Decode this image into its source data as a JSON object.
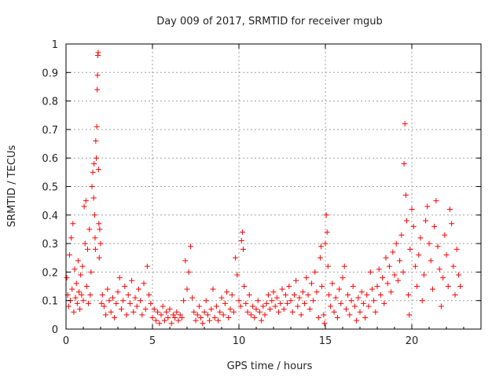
{
  "chart_data": {
    "type": "scatter",
    "title": "Day 009 of 2017, SRMTID for receiver mgub",
    "xlabel": "GPS time / hours",
    "ylabel": "SRMTID / TECUs",
    "xlim": [
      0,
      24
    ],
    "ylim": [
      0,
      1
    ],
    "xticks": [
      0,
      5,
      10,
      15,
      20
    ],
    "yticks": [
      0,
      0.1,
      0.2,
      0.3,
      0.4,
      0.5,
      0.6,
      0.7,
      0.8,
      0.9,
      1
    ],
    "xtick_labels": [
      "0",
      "5",
      "10",
      "15",
      "20"
    ],
    "ytick_labels": [
      "0",
      "0.1",
      "0.2",
      "0.3",
      "0.4",
      "0.5",
      "0.6",
      "0.7",
      "0.8",
      "0.9",
      "1"
    ],
    "grid": true,
    "marker": "+",
    "color": "#ff0000",
    "series": [
      {
        "name": "SRMTID",
        "points": [
          [
            0.05,
            0.18
          ],
          [
            0.1,
            0.12
          ],
          [
            0.15,
            0.08
          ],
          [
            0.2,
            0.26
          ],
          [
            0.25,
            0.1
          ],
          [
            0.3,
            0.32
          ],
          [
            0.35,
            0.14
          ],
          [
            0.4,
            0.37
          ],
          [
            0.45,
            0.06
          ],
          [
            0.5,
            0.21
          ],
          [
            0.55,
            0.11
          ],
          [
            0.6,
            0.16
          ],
          [
            0.65,
            0.09
          ],
          [
            0.7,
            0.24
          ],
          [
            0.75,
            0.13
          ],
          [
            0.8,
            0.07
          ],
          [
            0.85,
            0.19
          ],
          [
            0.9,
            0.12
          ],
          [
            0.95,
            0.22
          ],
          [
            1.0,
            0.1
          ],
          [
            1.05,
            0.43
          ],
          [
            1.1,
            0.3
          ],
          [
            1.15,
            0.45
          ],
          [
            1.2,
            0.15
          ],
          [
            1.25,
            0.28
          ],
          [
            1.3,
            0.09
          ],
          [
            1.35,
            0.35
          ],
          [
            1.4,
            0.12
          ],
          [
            1.45,
            0.2
          ],
          [
            1.5,
            0.5
          ],
          [
            1.55,
            0.55
          ],
          [
            1.6,
            0.46
          ],
          [
            1.62,
            0.58
          ],
          [
            1.65,
            0.4
          ],
          [
            1.68,
            0.32
          ],
          [
            1.7,
            0.28
          ],
          [
            1.72,
            0.66
          ],
          [
            1.75,
            0.6
          ],
          [
            1.78,
            0.71
          ],
          [
            1.8,
            0.84
          ],
          [
            1.82,
            0.89
          ],
          [
            1.84,
            0.96
          ],
          [
            1.86,
            0.97
          ],
          [
            1.88,
            0.56
          ],
          [
            1.9,
            0.37
          ],
          [
            1.92,
            0.25
          ],
          [
            1.95,
            0.35
          ],
          [
            2.0,
            0.3
          ],
          [
            2.05,
            0.09
          ],
          [
            2.1,
            0.12
          ],
          [
            2.2,
            0.08
          ],
          [
            2.3,
            0.05
          ],
          [
            2.4,
            0.14
          ],
          [
            2.5,
            0.1
          ],
          [
            2.6,
            0.06
          ],
          [
            2.7,
            0.11
          ],
          [
            2.8,
            0.04
          ],
          [
            2.9,
            0.09
          ],
          [
            3.0,
            0.13
          ],
          [
            3.1,
            0.18
          ],
          [
            3.2,
            0.07
          ],
          [
            3.3,
            0.1
          ],
          [
            3.4,
            0.15
          ],
          [
            3.5,
            0.05
          ],
          [
            3.6,
            0.12
          ],
          [
            3.7,
            0.09
          ],
          [
            3.8,
            0.17
          ],
          [
            3.9,
            0.06
          ],
          [
            4.0,
            0.11
          ],
          [
            4.1,
            0.08
          ],
          [
            4.2,
            0.14
          ],
          [
            4.3,
            0.1
          ],
          [
            4.4,
            0.05
          ],
          [
            4.5,
            0.16
          ],
          [
            4.6,
            0.07
          ],
          [
            4.7,
            0.22
          ],
          [
            4.8,
            0.12
          ],
          [
            4.9,
            0.09
          ],
          [
            5.0,
            0.04
          ],
          [
            5.1,
            0.07
          ],
          [
            5.2,
            0.03
          ],
          [
            5.3,
            0.06
          ],
          [
            5.4,
            0.02
          ],
          [
            5.5,
            0.05
          ],
          [
            5.6,
            0.08
          ],
          [
            5.7,
            0.03
          ],
          [
            5.8,
            0.06
          ],
          [
            5.9,
            0.04
          ],
          [
            6.0,
            0.07
          ],
          [
            6.1,
            0.02
          ],
          [
            6.2,
            0.05
          ],
          [
            6.3,
            0.04
          ],
          [
            6.4,
            0.06
          ],
          [
            6.5,
            0.03
          ],
          [
            6.6,
            0.05
          ],
          [
            6.7,
            0.04
          ],
          [
            6.8,
            0.1
          ],
          [
            6.9,
            0.24
          ],
          [
            7.0,
            0.14
          ],
          [
            7.1,
            0.2
          ],
          [
            7.2,
            0.29
          ],
          [
            7.3,
            0.11
          ],
          [
            7.4,
            0.06
          ],
          [
            7.5,
            0.03
          ],
          [
            7.6,
            0.05
          ],
          [
            7.7,
            0.08
          ],
          [
            7.8,
            0.04
          ],
          [
            7.9,
            0.02
          ],
          [
            8.0,
            0.06
          ],
          [
            8.1,
            0.1
          ],
          [
            8.2,
            0.05
          ],
          [
            8.3,
            0.03
          ],
          [
            8.4,
            0.07
          ],
          [
            8.5,
            0.14
          ],
          [
            8.6,
            0.04
          ],
          [
            8.7,
            0.08
          ],
          [
            8.8,
            0.03
          ],
          [
            8.9,
            0.06
          ],
          [
            9.0,
            0.11
          ],
          [
            9.1,
            0.05
          ],
          [
            9.2,
            0.09
          ],
          [
            9.3,
            0.13
          ],
          [
            9.4,
            0.04
          ],
          [
            9.5,
            0.07
          ],
          [
            9.6,
            0.12
          ],
          [
            9.7,
            0.06
          ],
          [
            9.8,
            0.25
          ],
          [
            9.9,
            0.19
          ],
          [
            10.0,
            0.1
          ],
          [
            10.1,
            0.08
          ],
          [
            10.15,
            0.31
          ],
          [
            10.2,
            0.34
          ],
          [
            10.25,
            0.28
          ],
          [
            10.3,
            0.15
          ],
          [
            10.4,
            0.09
          ],
          [
            10.5,
            0.06
          ],
          [
            10.6,
            0.12
          ],
          [
            10.7,
            0.05
          ],
          [
            10.8,
            0.08
          ],
          [
            10.9,
            0.04
          ],
          [
            11.0,
            0.07
          ],
          [
            11.1,
            0.1
          ],
          [
            11.2,
            0.06
          ],
          [
            11.3,
            0.03
          ],
          [
            11.4,
            0.08
          ],
          [
            11.5,
            0.05
          ],
          [
            11.6,
            0.09
          ],
          [
            11.7,
            0.12
          ],
          [
            11.8,
            0.07
          ],
          [
            11.9,
            0.1
          ],
          [
            12.0,
            0.13
          ],
          [
            12.1,
            0.08
          ],
          [
            12.2,
            0.11
          ],
          [
            12.3,
            0.06
          ],
          [
            12.4,
            0.09
          ],
          [
            12.5,
            0.14
          ],
          [
            12.6,
            0.07
          ],
          [
            12.7,
            0.12
          ],
          [
            12.8,
            0.09
          ],
          [
            12.9,
            0.15
          ],
          [
            13.0,
            0.1
          ],
          [
            13.1,
            0.06
          ],
          [
            13.2,
            0.12
          ],
          [
            13.3,
            0.17
          ],
          [
            13.4,
            0.08
          ],
          [
            13.5,
            0.11
          ],
          [
            13.6,
            0.05
          ],
          [
            13.7,
            0.13
          ],
          [
            13.8,
            0.09
          ],
          [
            13.9,
            0.18
          ],
          [
            14.0,
            0.12
          ],
          [
            14.1,
            0.07
          ],
          [
            14.2,
            0.16
          ],
          [
            14.3,
            0.1
          ],
          [
            14.4,
            0.2
          ],
          [
            14.5,
            0.13
          ],
          [
            14.6,
            0.04
          ],
          [
            14.7,
            0.25
          ],
          [
            14.75,
            0.29
          ],
          [
            14.8,
            0.15
          ],
          [
            14.9,
            0.05
          ],
          [
            14.95,
            0.02
          ],
          [
            15.0,
            0.3
          ],
          [
            15.05,
            0.4
          ],
          [
            15.1,
            0.34
          ],
          [
            15.15,
            0.22
          ],
          [
            15.2,
            0.12
          ],
          [
            15.3,
            0.08
          ],
          [
            15.4,
            0.16
          ],
          [
            15.5,
            0.06
          ],
          [
            15.6,
            0.11
          ],
          [
            15.7,
            0.04
          ],
          [
            15.8,
            0.14
          ],
          [
            15.9,
            0.09
          ],
          [
            16.0,
            0.18
          ],
          [
            16.1,
            0.22
          ],
          [
            16.2,
            0.07
          ],
          [
            16.3,
            0.12
          ],
          [
            16.4,
            0.05
          ],
          [
            16.5,
            0.1
          ],
          [
            16.6,
            0.15
          ],
          [
            16.7,
            0.08
          ],
          [
            16.8,
            0.03
          ],
          [
            16.9,
            0.11
          ],
          [
            17.0,
            0.06
          ],
          [
            17.1,
            0.13
          ],
          [
            17.2,
            0.09
          ],
          [
            17.3,
            0.04
          ],
          [
            17.4,
            0.12
          ],
          [
            17.5,
            0.08
          ],
          [
            17.6,
            0.2
          ],
          [
            17.7,
            0.14
          ],
          [
            17.8,
            0.1
          ],
          [
            17.9,
            0.06
          ],
          [
            18.0,
            0.15
          ],
          [
            18.1,
            0.21
          ],
          [
            18.2,
            0.12
          ],
          [
            18.3,
            0.18
          ],
          [
            18.4,
            0.09
          ],
          [
            18.5,
            0.25
          ],
          [
            18.6,
            0.16
          ],
          [
            18.7,
            0.22
          ],
          [
            18.8,
            0.13
          ],
          [
            18.9,
            0.27
          ],
          [
            19.0,
            0.19
          ],
          [
            19.1,
            0.3
          ],
          [
            19.2,
            0.17
          ],
          [
            19.3,
            0.24
          ],
          [
            19.4,
            0.33
          ],
          [
            19.5,
            0.2
          ],
          [
            19.55,
            0.58
          ],
          [
            19.6,
            0.72
          ],
          [
            19.65,
            0.47
          ],
          [
            19.7,
            0.38
          ],
          [
            19.8,
            0.12
          ],
          [
            19.85,
            0.05
          ],
          [
            19.9,
            0.28
          ],
          [
            20.0,
            0.42
          ],
          [
            20.1,
            0.36
          ],
          [
            20.2,
            0.22
          ],
          [
            20.3,
            0.15
          ],
          [
            20.4,
            0.26
          ],
          [
            20.5,
            0.32
          ],
          [
            20.6,
            0.1
          ],
          [
            20.7,
            0.19
          ],
          [
            20.8,
            0.38
          ],
          [
            20.9,
            0.43
          ],
          [
            21.0,
            0.3
          ],
          [
            21.1,
            0.24
          ],
          [
            21.2,
            0.14
          ],
          [
            21.3,
            0.36
          ],
          [
            21.4,
            0.45
          ],
          [
            21.5,
            0.29
          ],
          [
            21.6,
            0.21
          ],
          [
            21.7,
            0.08
          ],
          [
            21.8,
            0.18
          ],
          [
            21.9,
            0.33
          ],
          [
            22.0,
            0.26
          ],
          [
            22.1,
            0.15
          ],
          [
            22.2,
            0.42
          ],
          [
            22.3,
            0.37
          ],
          [
            22.4,
            0.22
          ],
          [
            22.5,
            0.12
          ],
          [
            22.6,
            0.28
          ],
          [
            22.7,
            0.19
          ],
          [
            22.8,
            0.15
          ]
        ]
      }
    ]
  }
}
